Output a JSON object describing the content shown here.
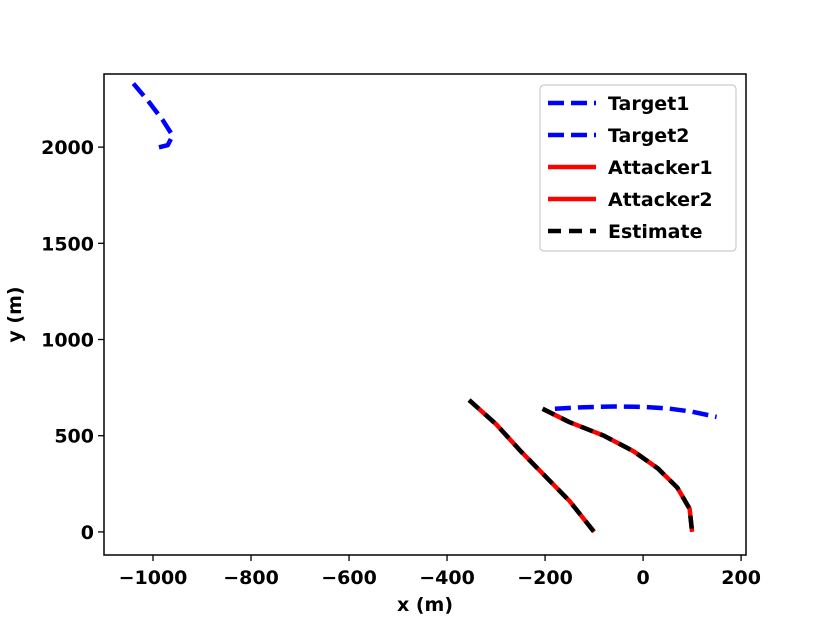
{
  "chart_data": {
    "type": "line",
    "title": "",
    "xlabel": "x (m)",
    "ylabel": "y (m)",
    "xlim": [
      -1100,
      210
    ],
    "ylim": [
      -120,
      2380
    ],
    "xticks": [
      -1000,
      -800,
      -600,
      -400,
      -200,
      0,
      200
    ],
    "yticks": [
      0,
      500,
      1000,
      1500,
      2000
    ],
    "xtick_labels": [
      "−1000",
      "−800",
      "−600",
      "−400",
      "−200",
      "0",
      "200"
    ],
    "ytick_labels": [
      "0",
      "500",
      "1000",
      "1500",
      "2000"
    ],
    "grid": false,
    "legend_position": "top-right",
    "series": [
      {
        "name": "Target1",
        "color": "#0000ff",
        "style": "dashed",
        "points": [
          [
            -1040,
            2330
          ],
          [
            -1010,
            2240
          ],
          [
            -980,
            2140
          ],
          [
            -960,
            2060
          ],
          [
            -970,
            2010
          ],
          [
            -995,
            1995
          ]
        ]
      },
      {
        "name": "Target2",
        "color": "#0000ff",
        "style": "dashed",
        "points": [
          [
            -180,
            640
          ],
          [
            -120,
            648
          ],
          [
            -60,
            652
          ],
          [
            0,
            650
          ],
          [
            50,
            642
          ],
          [
            100,
            625
          ],
          [
            150,
            598
          ]
        ]
      },
      {
        "name": "Attacker1",
        "color": "#ff0000",
        "style": "solid",
        "points": [
          [
            -355,
            685
          ],
          [
            -300,
            560
          ],
          [
            -250,
            420
          ],
          [
            -200,
            290
          ],
          [
            -150,
            160
          ],
          [
            -100,
            0
          ]
        ]
      },
      {
        "name": "Attacker2",
        "color": "#ff0000",
        "style": "solid",
        "points": [
          [
            -205,
            640
          ],
          [
            -150,
            570
          ],
          [
            -80,
            500
          ],
          [
            -20,
            420
          ],
          [
            30,
            330
          ],
          [
            70,
            230
          ],
          [
            95,
            120
          ],
          [
            100,
            0
          ]
        ]
      },
      {
        "name": "Estimate",
        "color": "#000000",
        "style": "dashed",
        "group": [
          [
            [
              -355,
              685
            ],
            [
              -300,
              560
            ],
            [
              -250,
              420
            ],
            [
              -200,
              290
            ],
            [
              -150,
              160
            ],
            [
              -100,
              0
            ]
          ],
          [
            [
              -205,
              640
            ],
            [
              -150,
              570
            ],
            [
              -80,
              500
            ],
            [
              -20,
              420
            ],
            [
              30,
              330
            ],
            [
              70,
              230
            ],
            [
              95,
              120
            ],
            [
              100,
              0
            ]
          ]
        ]
      }
    ]
  }
}
